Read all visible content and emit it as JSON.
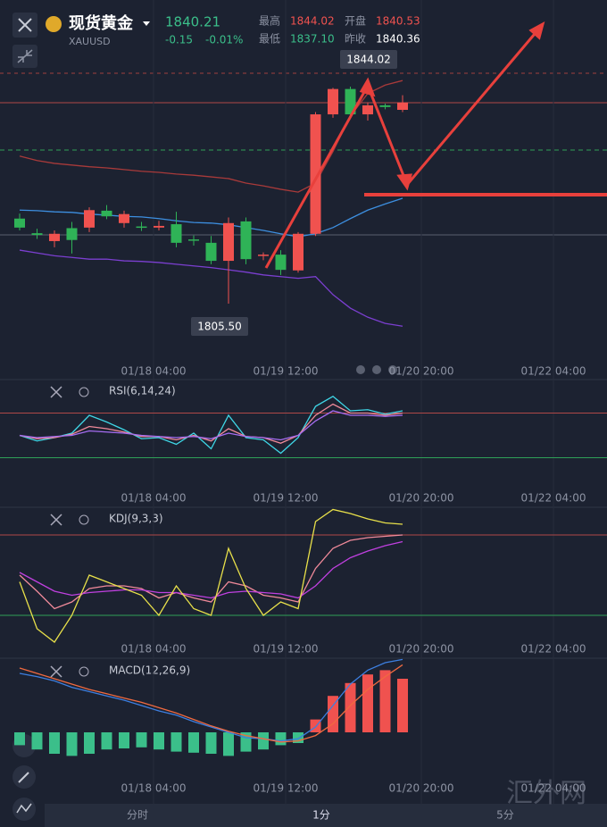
{
  "header": {
    "name": "现货黄金",
    "symbol": "XAUUSD",
    "price": "1840.21",
    "change": "-0.15",
    "change_pct": "-0.01%",
    "stats": [
      {
        "label": "最高",
        "value": "1844.02",
        "color": "#f0524f"
      },
      {
        "label": "开盘",
        "value": "1840.53",
        "color": "#f0524f"
      },
      {
        "label": "最低",
        "value": "1837.10",
        "color": "#3bbf8a"
      },
      {
        "label": "昨收",
        "value": "1840.36",
        "color": "#ffffff"
      }
    ]
  },
  "time_labels": [
    "01/18 04:00",
    "01/19 12:00",
    "01/20 20:00",
    "01/22 04:00"
  ],
  "main": {
    "high_label": "1844.02",
    "low_label": "1805.50",
    "up_color": "#f0524f",
    "down_color": "#2fb357",
    "open": [
      1820.6,
      1818.0,
      1816.6,
      1818.9,
      1819.0,
      1822.0,
      1819.8,
      1819.2,
      1819.0,
      1819.6,
      1816.9,
      1816.3,
      1813.1,
      1820.1,
      1814.0,
      1814.2,
      1811.4,
      1817.9,
      1839.1,
      1843.6,
      1839.1,
      1840.7,
      1839.9
    ],
    "high": [
      1821.5,
      1818.8,
      1818.5,
      1820.0,
      1822.6,
      1823.0,
      1822.0,
      1820.0,
      1820.2,
      1821.8,
      1817.6,
      1817.5,
      1820.8,
      1820.8,
      1814.6,
      1815.0,
      1818.2,
      1839.5,
      1843.8,
      1844.02,
      1841.2,
      1841.0,
      1842.5
    ],
    "low": [
      1818.5,
      1817.0,
      1815.5,
      1814.4,
      1818.2,
      1820.5,
      1819.0,
      1818.4,
      1818.5,
      1815.5,
      1815.8,
      1812.5,
      1805.5,
      1812.5,
      1813.2,
      1810.6,
      1811.0,
      1817.5,
      1838.5,
      1838.8,
      1838.0,
      1840.0,
      1839.5
    ],
    "close": [
      1819.0,
      1817.7,
      1817.9,
      1816.8,
      1822.1,
      1821.0,
      1821.4,
      1819.0,
      1819.3,
      1816.3,
      1816.7,
      1813.1,
      1819.8,
      1813.4,
      1814.2,
      1811.5,
      1817.9,
      1839.1,
      1843.6,
      1839.1,
      1840.7,
      1840.4,
      1841.2
    ],
    "bands": [
      {
        "color": "#a83a3a",
        "values": [
          1831.7,
          1830.9,
          1830.4,
          1830.1,
          1829.8,
          1829.6,
          1829.3,
          1829.0,
          1828.8,
          1828.5,
          1828.3,
          1828.0,
          1827.7,
          1826.9,
          1826.4,
          1825.8,
          1825.3,
          1826.9,
          1832.5,
          1838.8,
          1842.8,
          1844.3,
          1845.1
        ]
      },
      {
        "color": "#3d8fe0",
        "values": [
          1822.1,
          1822.0,
          1821.8,
          1821.7,
          1821.4,
          1821.2,
          1821.0,
          1820.9,
          1820.6,
          1820.2,
          1819.9,
          1819.8,
          1819.5,
          1819.0,
          1818.5,
          1817.9,
          1817.4,
          1817.9,
          1819.0,
          1820.6,
          1822.1,
          1823.2,
          1824.2
        ]
      },
      {
        "color": "#7b3fd0",
        "values": [
          1815.0,
          1814.5,
          1814.0,
          1813.7,
          1813.4,
          1813.4,
          1813.1,
          1813.0,
          1812.8,
          1812.5,
          1812.2,
          1811.9,
          1811.5,
          1811.1,
          1810.6,
          1810.3,
          1810.0,
          1810.3,
          1807.1,
          1804.7,
          1803.1,
          1802.0,
          1801.5
        ]
      }
    ]
  },
  "rsi": {
    "title": "RSI(6,14,24)",
    "levels": [
      70,
      30
    ],
    "series": [
      {
        "color": "#3fd6e6",
        "values": [
          50,
          45,
          48,
          52,
          68,
          62,
          55,
          47,
          48,
          42,
          52,
          38,
          68,
          48,
          46,
          34,
          48,
          76,
          85,
          72,
          73,
          69,
          72
        ]
      },
      {
        "color": "#f08a9a",
        "values": [
          50,
          47,
          48,
          51,
          58,
          56,
          53,
          49,
          49,
          46,
          50,
          45,
          56,
          49,
          48,
          43,
          50,
          68,
          78,
          70,
          70,
          68,
          70
        ]
      },
      {
        "color": "#a56cf0",
        "values": [
          50,
          48,
          49,
          50,
          54,
          53,
          52,
          50,
          49,
          48,
          49,
          47,
          52,
          49,
          48,
          46,
          50,
          63,
          72,
          68,
          68,
          67,
          68
        ]
      }
    ]
  },
  "kdj": {
    "title": "KDJ(9,3,3)",
    "levels": [
      80,
      20
    ],
    "series": [
      {
        "color": "#f08a9a",
        "values": [
          50,
          38,
          25,
          30,
          40,
          42,
          42,
          40,
          33,
          37,
          33,
          30,
          45,
          42,
          35,
          33,
          30,
          55,
          70,
          76,
          78,
          79,
          80
        ]
      },
      {
        "color": "#c040e0",
        "values": [
          52,
          45,
          38,
          35,
          37,
          38,
          39,
          39,
          37,
          37,
          35,
          33,
          37,
          38,
          37,
          36,
          33,
          42,
          55,
          63,
          68,
          72,
          75
        ]
      },
      {
        "color": "#e8e04a",
        "values": [
          45,
          10,
          0,
          20,
          50,
          45,
          40,
          35,
          20,
          42,
          25,
          20,
          70,
          40,
          20,
          30,
          25,
          90,
          99,
          96,
          92,
          89,
          88
        ]
      }
    ]
  },
  "macd": {
    "title": "MACD(12,26,9)",
    "up_color": "#f0524f",
    "down_color": "#3bbf8a",
    "hist": [
      -1.2,
      -1.6,
      -2.0,
      -2.2,
      -2.0,
      -1.6,
      -1.5,
      -1.4,
      -1.6,
      -1.8,
      -1.9,
      -2.0,
      -2.2,
      -1.8,
      -1.6,
      -1.2,
      -1.0,
      1.2,
      3.4,
      4.6,
      5.4,
      5.8,
      5.0
    ],
    "series": [
      {
        "color": "#3d7fe0",
        "values": [
          5.5,
          5.2,
          4.8,
          4.2,
          3.8,
          3.4,
          3.0,
          2.5,
          2.0,
          1.6,
          1.0,
          0.5,
          0,
          -0.5,
          -0.6,
          -0.8,
          -0.6,
          0.5,
          2.5,
          4.5,
          5.8,
          6.5,
          6.8
        ]
      },
      {
        "color": "#f06a40",
        "values": [
          6.0,
          5.5,
          5.0,
          4.5,
          4.0,
          3.6,
          3.2,
          2.8,
          2.3,
          1.8,
          1.2,
          0.6,
          0.1,
          -0.3,
          -0.6,
          -0.9,
          -0.8,
          -0.3,
          0.8,
          2.5,
          4.0,
          5.2,
          6.3
        ]
      }
    ]
  },
  "tabs": [
    "分时",
    "1分",
    "5分"
  ],
  "watermark": "汇外网"
}
